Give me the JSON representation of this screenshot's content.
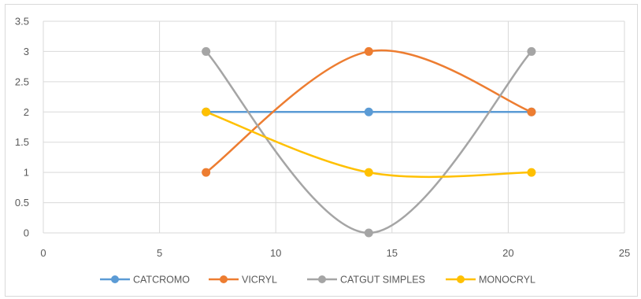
{
  "chart_data": {
    "type": "scatter",
    "title": "",
    "xlabel": "",
    "ylabel": "",
    "xlim": [
      0,
      25
    ],
    "ylim": [
      0,
      3.5
    ],
    "x_ticks": [
      "0",
      "5",
      "10",
      "15",
      "20",
      "25"
    ],
    "y_ticks": [
      "0",
      "0.5",
      "1",
      "1.5",
      "2",
      "2.5",
      "3",
      "3.5"
    ],
    "x_tick_values": [
      0,
      5,
      10,
      15,
      20,
      25
    ],
    "y_tick_values": [
      0,
      0.5,
      1,
      1.5,
      2,
      2.5,
      3,
      3.5
    ],
    "grid": true,
    "smooth_lines": true,
    "legend_position": "bottom",
    "series": [
      {
        "name": "CATCROMO",
        "color": "#5b9bd5",
        "points": [
          [
            7,
            2
          ],
          [
            14,
            2
          ],
          [
            21,
            2
          ]
        ]
      },
      {
        "name": "VICRYL",
        "color": "#ed7d31",
        "points": [
          [
            7,
            1
          ],
          [
            14,
            3
          ],
          [
            21,
            2
          ]
        ]
      },
      {
        "name": "CATGUT SIMPLES",
        "color": "#a5a5a5",
        "points": [
          [
            7,
            3
          ],
          [
            14,
            0
          ],
          [
            21,
            3
          ]
        ]
      },
      {
        "name": "MONOCRYL",
        "color": "#ffc000",
        "points": [
          [
            7,
            2
          ],
          [
            14,
            1
          ],
          [
            21,
            1
          ]
        ]
      }
    ]
  }
}
